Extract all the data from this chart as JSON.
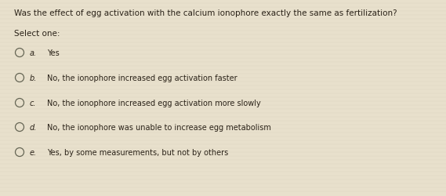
{
  "background_color": "#e8e0cc",
  "question": "Was the effect of egg activation with the calcium ionophore exactly the same as fertilization?",
  "select_one": "Select one:",
  "options": [
    {
      "label": "a.",
      "text": "Yes"
    },
    {
      "label": "b.",
      "text": "No, the ionophore increased egg activation faster"
    },
    {
      "label": "c.",
      "text": "No, the ionophore increased egg activation more slowly"
    },
    {
      "label": "d.",
      "text": "No, the ionophore was unable to increase egg metabolism"
    },
    {
      "label": "e.",
      "text": "Yes, by some measurements, but not by others"
    }
  ],
  "question_fontsize": 7.5,
  "select_fontsize": 7.5,
  "option_label_fontsize": 7.0,
  "option_text_fontsize": 7.0,
  "text_color": "#2a2218",
  "circle_edge_color": "#666655",
  "fig_width": 5.69,
  "fig_height": 2.51,
  "dpi": 100
}
